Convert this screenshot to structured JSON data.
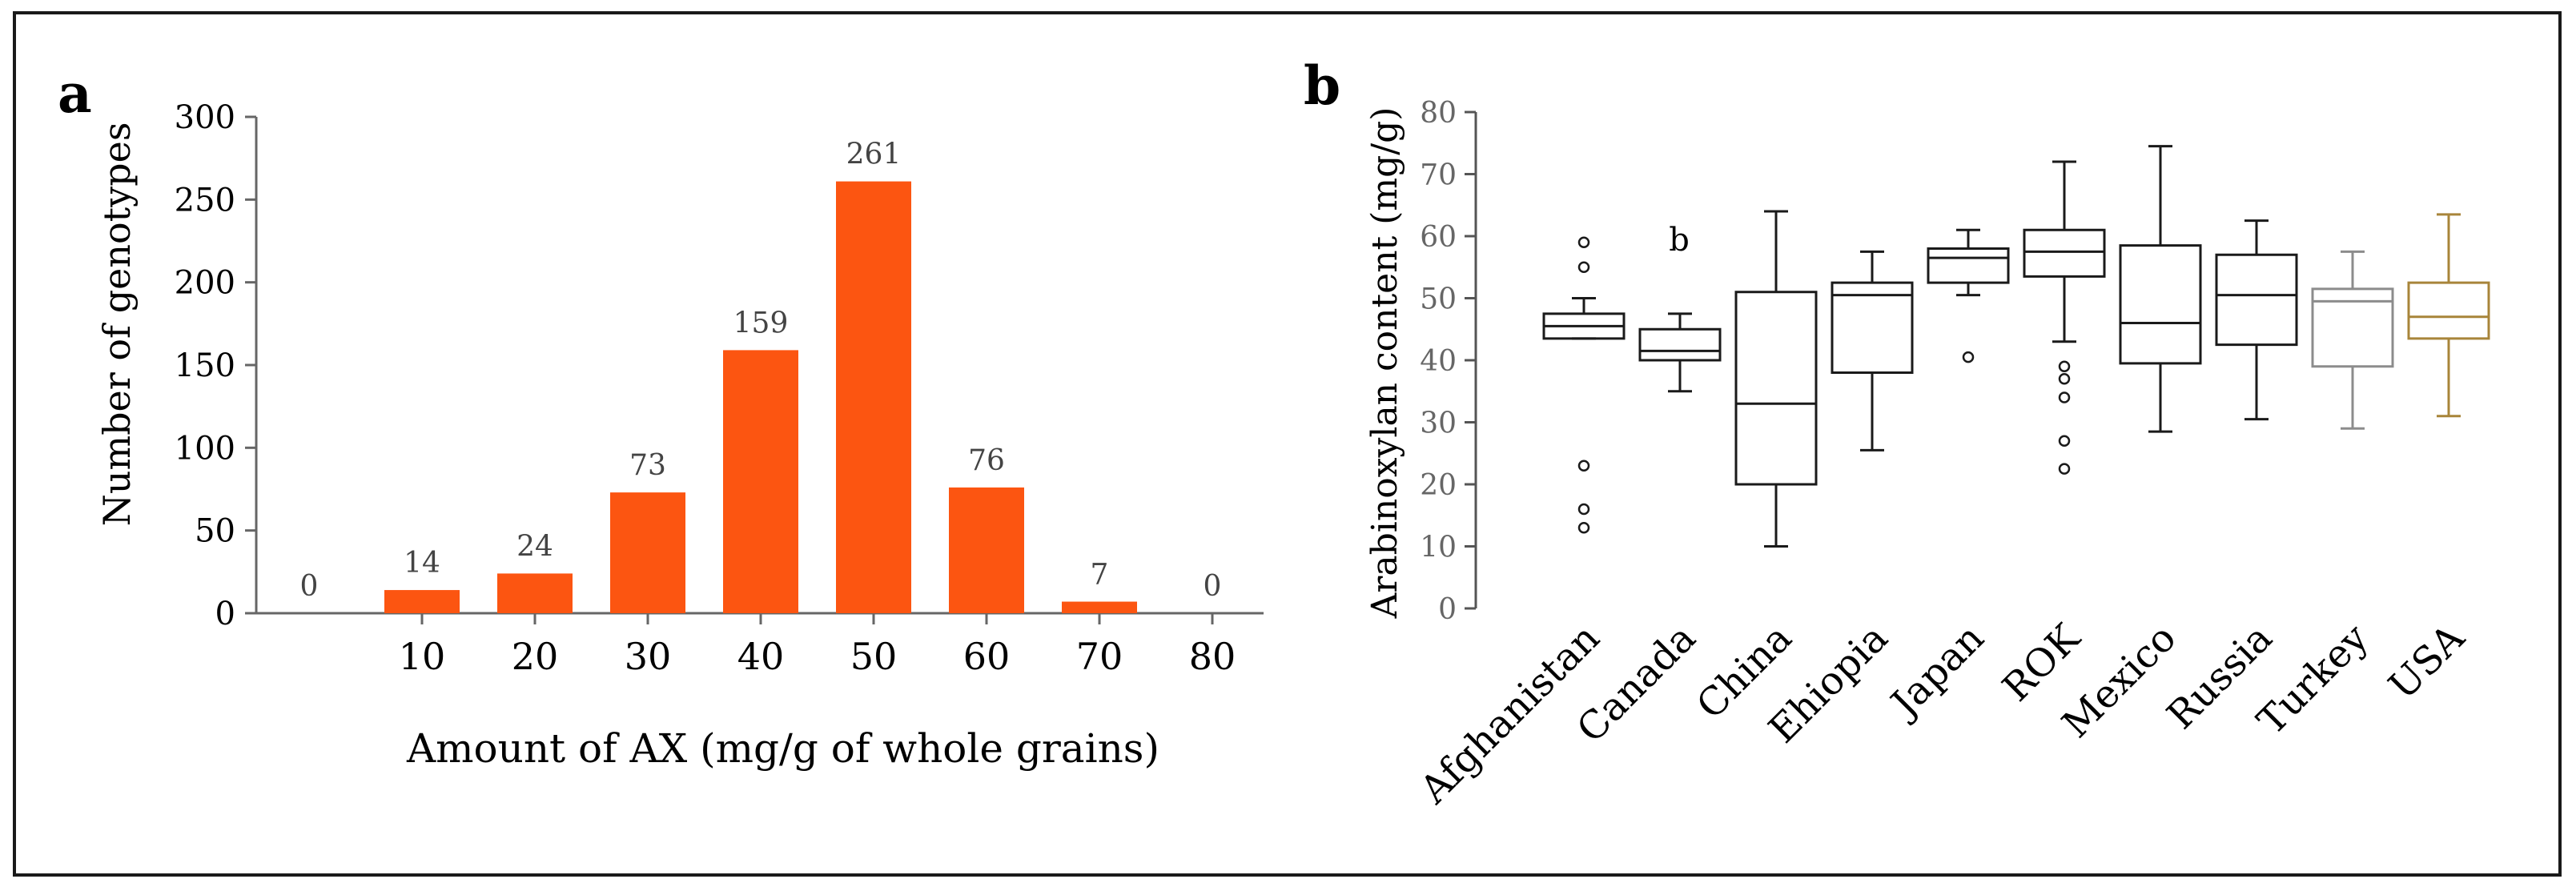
{
  "chart_data": [
    {
      "panel_label": "a",
      "type": "bar",
      "categories": [
        "",
        "10",
        "20",
        "30",
        "40",
        "50",
        "60",
        "70",
        "80"
      ],
      "values": [
        0,
        14,
        24,
        73,
        159,
        261,
        76,
        7,
        0
      ],
      "value_labels": [
        "0",
        "14",
        "24",
        "73",
        "159",
        "261",
        "76",
        "7",
        "0"
      ],
      "ylabel": "Number of genotypes",
      "xlabel": "Amount of AX (mg/g of whole grains)",
      "ylim": [
        0,
        300
      ],
      "yticks": [
        0,
        50,
        100,
        150,
        200,
        250,
        300
      ],
      "ytick_labels": [
        "0",
        "50",
        "100",
        "150",
        "200",
        "250",
        "300"
      ],
      "bar_color": "#fc5511",
      "grid": false
    },
    {
      "panel_label": "b",
      "type": "box",
      "ylabel": "Arabinoxylan content (mg/g)",
      "ylim": [
        0,
        80
      ],
      "yticks": [
        0,
        10,
        20,
        30,
        40,
        50,
        60,
        70,
        80
      ],
      "ytick_labels": [
        "0",
        "10",
        "20",
        "30",
        "40",
        "50",
        "60",
        "70",
        "80"
      ],
      "annotation": "b",
      "groups": [
        {
          "name": "Afghanistan",
          "min": 43.5,
          "q1": 43.5,
          "median": 45.5,
          "q3": 47.5,
          "max": 50,
          "outliers": [
            59,
            55,
            23,
            16,
            13
          ],
          "color": "#1a1a1a"
        },
        {
          "name": "Canada",
          "min": 35,
          "q1": 40,
          "median": 41.5,
          "q3": 45,
          "max": 47.5,
          "outliers": [],
          "color": "#1a1a1a"
        },
        {
          "name": "China",
          "min": 10,
          "q1": 20,
          "median": 33,
          "q3": 51,
          "max": 64,
          "outliers": [],
          "color": "#1a1a1a"
        },
        {
          "name": "Ehiopia",
          "min": 25.5,
          "q1": 38,
          "median": 50.5,
          "q3": 52.5,
          "max": 57.5,
          "outliers": [],
          "color": "#1a1a1a"
        },
        {
          "name": "Japan",
          "min": 50.5,
          "q1": 52.5,
          "median": 56.5,
          "q3": 58,
          "max": 61,
          "outliers": [
            40.5
          ],
          "color": "#1a1a1a"
        },
        {
          "name": "ROK",
          "min": 43,
          "q1": 53.5,
          "median": 57.5,
          "q3": 61,
          "max": 72,
          "outliers": [
            39,
            37,
            34,
            27,
            22.5
          ],
          "color": "#1a1a1a"
        },
        {
          "name": "Mexico",
          "min": 28.5,
          "q1": 39.5,
          "median": 46,
          "q3": 58.5,
          "max": 74.5,
          "outliers": [],
          "color": "#1a1a1a"
        },
        {
          "name": "Russia",
          "min": 30.5,
          "q1": 42.5,
          "median": 50.5,
          "q3": 57,
          "max": 62.5,
          "outliers": [],
          "color": "#1a1a1a"
        },
        {
          "name": "Turkey",
          "min": 29,
          "q1": 39,
          "median": 49.5,
          "q3": 51.5,
          "max": 57.5,
          "outliers": [],
          "color": "#8c8c8c"
        },
        {
          "name": "USA",
          "min": 31,
          "q1": 43.5,
          "median": 47,
          "q3": 52.5,
          "max": 63.5,
          "outliers": [],
          "color": "#a8853a"
        }
      ]
    }
  ]
}
